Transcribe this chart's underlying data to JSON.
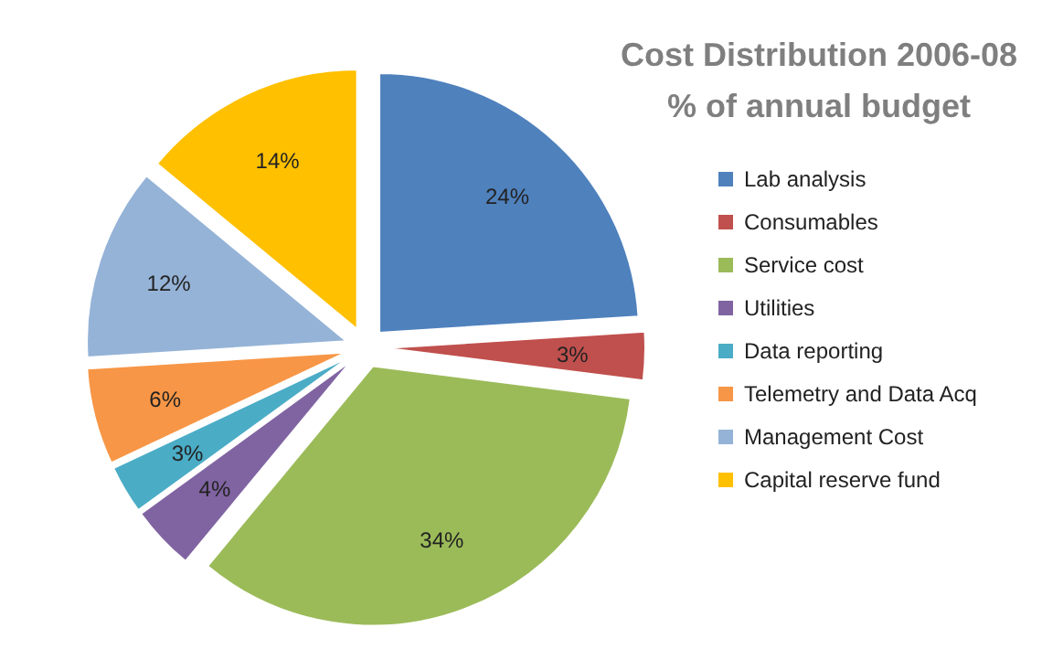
{
  "chart_data": {
    "type": "pie",
    "title": "Cost Distribution 2006-08",
    "subtitle": "% of annual budget",
    "categories": [
      "Lab analysis",
      "Consumables",
      "Service cost",
      "Utilities",
      "Data reporting",
      "Telemetry and Data Acq",
      "Management Cost",
      "Capital reserve fund"
    ],
    "values": [
      24,
      3,
      34,
      4,
      3,
      6,
      12,
      14
    ],
    "colors": [
      "#4f81bd",
      "#c0504d",
      "#9bbb59",
      "#8064a2",
      "#4bacc6",
      "#f79646",
      "#95b3d7",
      "#ffc000"
    ],
    "value_labels": [
      "24%",
      "3%",
      "34%",
      "4%",
      "3%",
      "6%",
      "12%",
      "14%"
    ],
    "legend": "right"
  }
}
